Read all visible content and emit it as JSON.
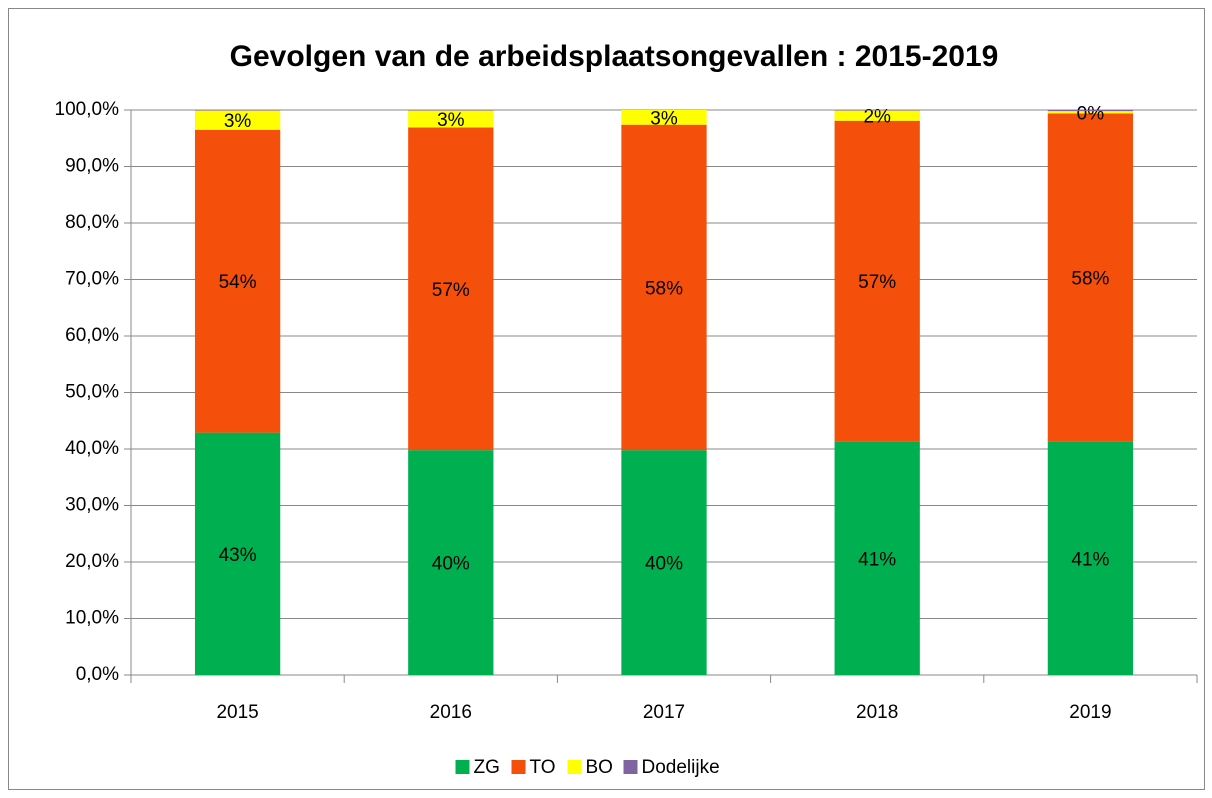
{
  "chart_data": {
    "type": "stacked_bar",
    "title": "Gevolgen van de arbeidsplaatsongevallen : 2015-2019",
    "categories": [
      "2015",
      "2016",
      "2017",
      "2018",
      "2019"
    ],
    "series": [
      {
        "name": "ZG",
        "color": "#00b050",
        "values": [
          42.9,
          39.8,
          39.8,
          41.3,
          41.3
        ],
        "value_labels": [
          "43%",
          "40%",
          "40%",
          "41%",
          "41%"
        ]
      },
      {
        "name": "TO",
        "color": "#f54f0c",
        "values": [
          53.6,
          57.1,
          57.6,
          56.8,
          58.1
        ],
        "value_labels": [
          "54%",
          "57%",
          "58%",
          "57%",
          "58%"
        ]
      },
      {
        "name": "BO",
        "color": "#ffff00",
        "values": [
          3.4,
          3.0,
          2.6,
          1.8,
          0.4
        ],
        "value_labels": [
          "3%",
          "3%",
          "3%",
          "2%",
          "0%"
        ]
      },
      {
        "name": "Dodelijke",
        "color": "#8064a2",
        "values": [
          0.1,
          0.1,
          0.0,
          0.1,
          0.2
        ]
      }
    ],
    "ylim": [
      0,
      100
    ],
    "yticks": [
      {
        "value": 0,
        "label": "0,0%"
      },
      {
        "value": 10,
        "label": "10,0%"
      },
      {
        "value": 20,
        "label": "20,0%"
      },
      {
        "value": 30,
        "label": "30,0%"
      },
      {
        "value": 40,
        "label": "40,0%"
      },
      {
        "value": 50,
        "label": "50,0%"
      },
      {
        "value": 60,
        "label": "60,0%"
      },
      {
        "value": 70,
        "label": "70,0%"
      },
      {
        "value": 80,
        "label": "80,0%"
      },
      {
        "value": 90,
        "label": "90,0%"
      },
      {
        "value": 100,
        "label": "100,0%"
      }
    ],
    "grid": true,
    "legend": "bottom"
  }
}
